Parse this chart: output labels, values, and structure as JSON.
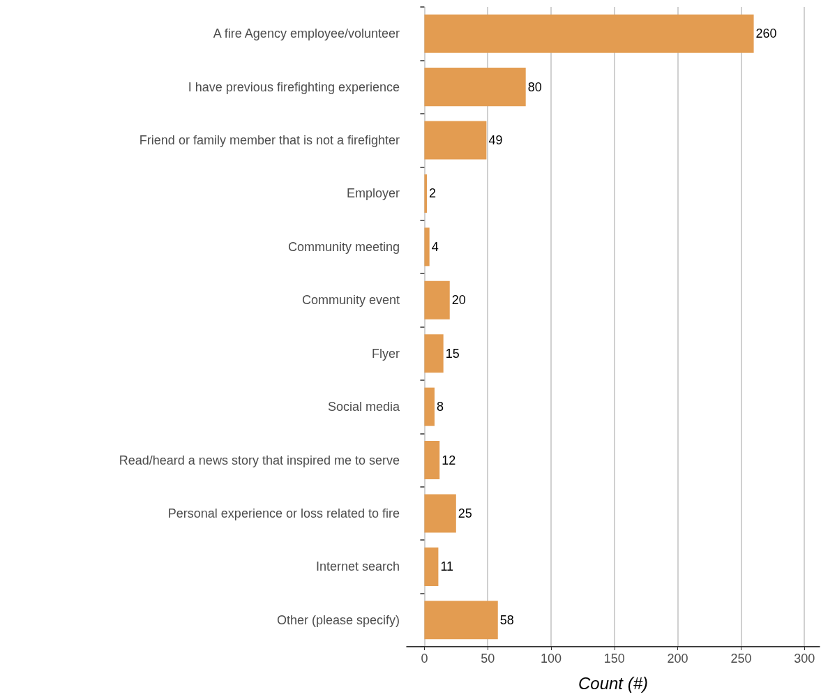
{
  "chart_data": {
    "type": "bar",
    "orientation": "horizontal",
    "xlabel": "Count (#)",
    "categories": [
      "A fire Agency employee/volunteer",
      "I have previous firefighting experience",
      "Friend or family member that is not a firefighter",
      "Employer",
      "Community meeting",
      "Community event",
      "Flyer",
      "Social media",
      "Read/heard a news story that inspired me to serve",
      "Personal experience or loss related to fire",
      "Internet search",
      "Other (please specify)"
    ],
    "values": [
      260,
      80,
      49,
      2,
      4,
      20,
      15,
      8,
      12,
      25,
      11,
      58
    ],
    "color": "#e39c51",
    "xlim": [
      -14,
      312
    ],
    "xticks": [
      0,
      50,
      100,
      150,
      200,
      250,
      300
    ],
    "grid": "x",
    "data_labels": true
  }
}
